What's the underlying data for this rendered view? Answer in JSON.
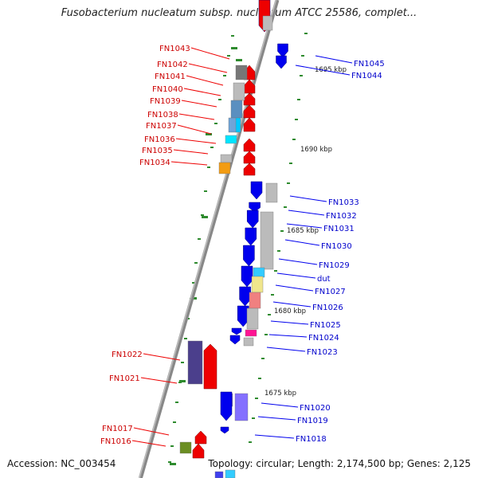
{
  "title": "Fusobacterium nucleatum subsp. nucleatum ATCC 25586, complet...",
  "footer": {
    "accession": "Accession: NC_003454",
    "topology": "Topology: circular; Length: 2,174,500 bp; Genes: 2,125"
  },
  "colors": {
    "forward": "#ee0000",
    "reverse": "#0000ee",
    "backbone": "#888888",
    "ticks": "#2e8b2e",
    "label_red": "#cc0000",
    "label_blue": "#0000cc"
  },
  "scale_labels": [
    "1695 kbp",
    "1690 kbp",
    "1685 kbp",
    "1680 kbp",
    "1675 kbp"
  ],
  "genes_left": [
    "FN1043",
    "FN1042",
    "FN1041",
    "FN1040",
    "FN1039",
    "FN1038",
    "FN1037",
    "FN1036",
    "FN1035",
    "FN1034",
    "FN1022",
    "FN1021",
    "FN1017",
    "FN1016"
  ],
  "genes_right": [
    "FN1045",
    "FN1044",
    "FN1033",
    "FN1032",
    "FN1031",
    "FN1030",
    "FN1029",
    "dut",
    "FN1027",
    "FN1026",
    "FN1025",
    "FN1024",
    "FN1023",
    "FN1020",
    "FN1019",
    "FN1018"
  ]
}
